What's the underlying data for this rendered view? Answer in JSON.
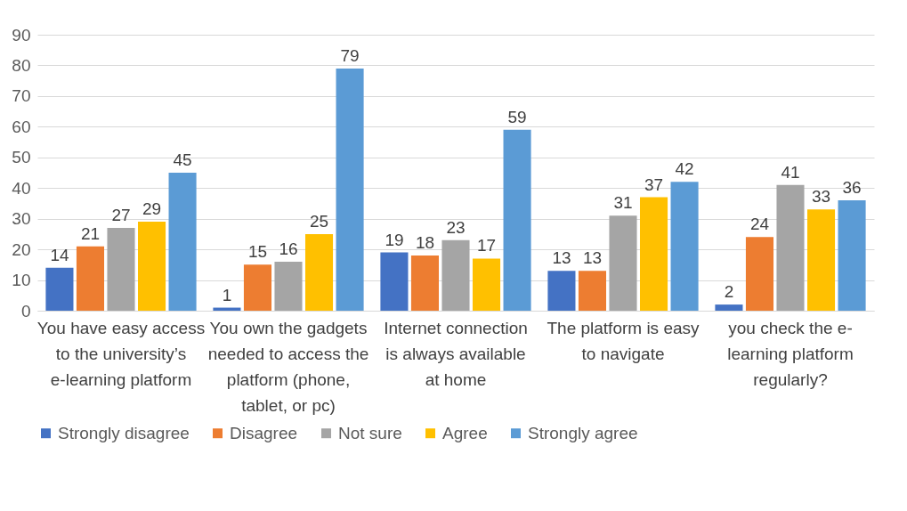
{
  "chart_data": {
    "type": "bar",
    "categories": [
      "You have easy access to the university’s e-learning platform",
      "You own the gadgets needed to access the platform (phone, tablet, or pc)",
      "Internet connection is always available at home",
      "The platform is easy to navigate",
      "you check the e-learning platform regularly?"
    ],
    "series": [
      {
        "name": "Strongly disagree",
        "color": "#4472c4",
        "values": [
          14,
          1,
          19,
          13,
          2
        ]
      },
      {
        "name": "Disagree",
        "color": "#ed7d31",
        "values": [
          21,
          15,
          18,
          13,
          24
        ]
      },
      {
        "name": "Not sure",
        "color": "#a5a5a5",
        "values": [
          27,
          16,
          23,
          31,
          41
        ]
      },
      {
        "name": "Agree",
        "color": "#ffc000",
        "values": [
          29,
          25,
          17,
          37,
          33
        ]
      },
      {
        "name": "Strongly agree",
        "color": "#5b9bd5",
        "values": [
          45,
          79,
          59,
          42,
          36
        ]
      }
    ],
    "ylim": [
      0,
      90
    ],
    "yticks": [
      0,
      10,
      20,
      30,
      40,
      50,
      60,
      70,
      80,
      90
    ],
    "grid": "y",
    "legend": "bottom",
    "data_labels": true
  }
}
